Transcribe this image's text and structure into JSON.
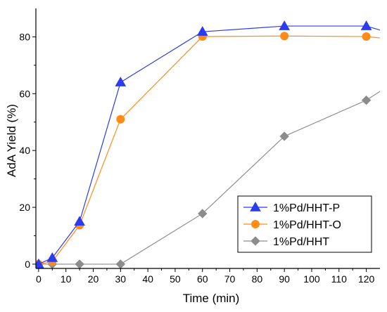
{
  "chart_data": {
    "type": "line",
    "xlabel": "Time (min)",
    "ylabel": "AdA Yield (%)",
    "xlim": [
      -1,
      125
    ],
    "ylim": [
      -1.5,
      90
    ],
    "xticks": [
      0,
      10,
      20,
      30,
      40,
      50,
      60,
      70,
      80,
      90,
      100,
      110,
      120
    ],
    "yticks": [
      0,
      20,
      40,
      60,
      80
    ],
    "grid": false,
    "legend_position": "bottom-right",
    "series": [
      {
        "name": "1%Pd/HHT-P",
        "color": "#2b3bed",
        "marker": "triangle",
        "x": [
          0,
          5,
          15,
          30,
          60,
          90,
          120,
          125
        ],
        "y": [
          0,
          2.2,
          15,
          64,
          81.8,
          83.8,
          83.8,
          82.4
        ]
      },
      {
        "name": "1%Pd/HHT-O",
        "color": "#ff8c1a",
        "marker": "circle",
        "x": [
          0,
          5,
          15,
          30,
          60,
          90,
          120,
          125
        ],
        "y": [
          0,
          0.9,
          13.7,
          51,
          80.1,
          80.3,
          80.1,
          79.6
        ]
      },
      {
        "name": "1%Pd/HHT",
        "color": "#8c8c8c",
        "marker": "diamond",
        "x": [
          0,
          5,
          15,
          30,
          60,
          90,
          120,
          125
        ],
        "y": [
          0,
          0,
          0,
          0,
          17.8,
          45,
          57.7,
          60.8
        ]
      }
    ]
  }
}
